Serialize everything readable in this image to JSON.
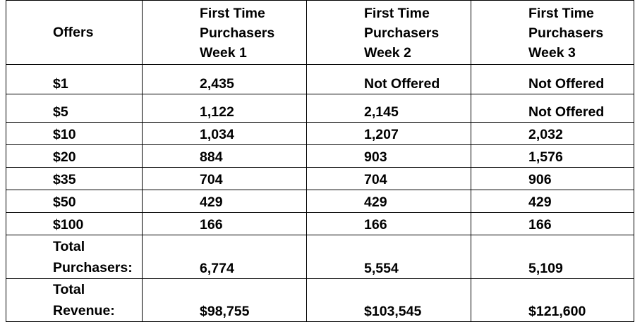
{
  "table": {
    "header": {
      "offers": "Offers",
      "week1": [
        "First Time",
        "Purchasers",
        "Week 1"
      ],
      "week2": [
        "First Time",
        "Purchasers",
        "Week 2"
      ],
      "week3": [
        "First Time",
        "Purchasers",
        "Week 3"
      ]
    },
    "rows": [
      {
        "offer": "$1",
        "w1": "2,435",
        "w2": "Not Offered",
        "w3": "Not Offered"
      },
      {
        "offer": "$5",
        "w1": "1,122",
        "w2": "2,145",
        "w3": "Not Offered"
      },
      {
        "offer": "$10",
        "w1": "1,034",
        "w2": "1,207",
        "w3": "2,032"
      },
      {
        "offer": "$20",
        "w1": "884",
        "w2": "903",
        "w3": "1,576"
      },
      {
        "offer": "$35",
        "w1": "704",
        "w2": "704",
        "w3": "906"
      },
      {
        "offer": "$50",
        "w1": "429",
        "w2": "429",
        "w3": "429"
      },
      {
        "offer": "$100",
        "w1": "166",
        "w2": "166",
        "w3": "166"
      }
    ],
    "total_purchasers": {
      "label": [
        "Total",
        "Purchasers:"
      ],
      "w1": "6,774",
      "w2": "5,554",
      "w3": "5,109"
    },
    "total_revenue": {
      "label": [
        "Total",
        "Revenue:"
      ],
      "w1": "$98,755",
      "w2": "$103,545",
      "w3": "$121,600"
    }
  }
}
